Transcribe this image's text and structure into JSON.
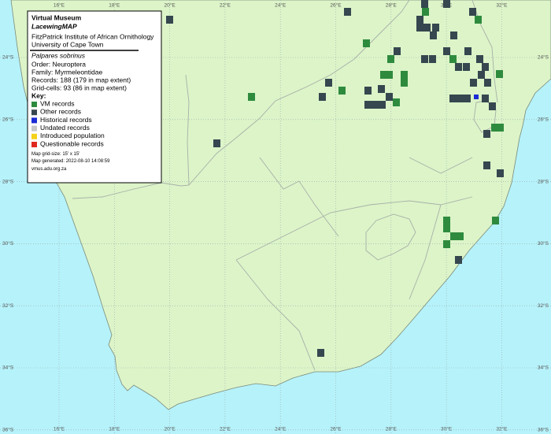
{
  "legend": {
    "title": "Virtual Museum",
    "subtitle": "LacewingMAP",
    "institute": "FitzPatrick Institute of African Ornithology",
    "university": "University of Cape Town",
    "species": "Palpares sobrinus",
    "order": "Order: Neuroptera",
    "family": "Family: Myrmeleontidae",
    "records": "Records: 188 (179 in map extent)",
    "grid_cells": "Grid-cells: 93 (86 in map extent)",
    "key_title": "Key:",
    "key": [
      {
        "label": "VM records",
        "color": "#2e8b3e"
      },
      {
        "label": "Other records",
        "color": "#36474f"
      },
      {
        "label": "Historical records",
        "color": "#1a2bd6"
      },
      {
        "label": "Undated records",
        "color": "#c8c8c8"
      },
      {
        "label": "Introduced population",
        "color": "#f5d21a"
      },
      {
        "label": "Questionable records",
        "color": "#e0281e"
      }
    ],
    "grid_size": "Map grid-size: 15' x 15'",
    "generated": "Map generated: 2022-08-10 14:08:59",
    "url": "vmus.adu.org.za"
  },
  "map": {
    "longitudes": [
      "16°E",
      "18°E",
      "20°E",
      "22°E",
      "24°E",
      "26°E",
      "28°E",
      "30°E",
      "32°E"
    ],
    "latitudes": [
      "24°S",
      "26°S",
      "28°S",
      "30°S",
      "32°S",
      "34°S",
      "36°S"
    ]
  }
}
